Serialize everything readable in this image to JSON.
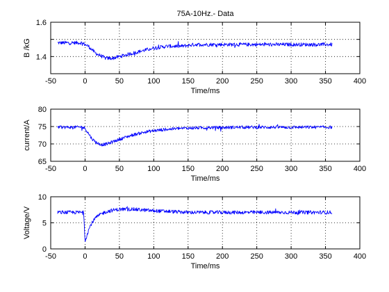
{
  "chart_data": [
    {
      "type": "line",
      "title": "75A-10Hz.- Data",
      "xlabel": "Time/ms",
      "ylabel": "B /kG",
      "xlim": [
        -50,
        400
      ],
      "ylim": [
        1.3,
        1.6
      ],
      "xticks": [
        -50,
        0,
        50,
        100,
        150,
        200,
        250,
        300,
        350,
        400
      ],
      "yticks": [
        1.4,
        1.6
      ],
      "grid": true,
      "color": "#0000ff",
      "series": [
        {
          "x": [
            -40,
            -30,
            -20,
            -10,
            -5,
            0,
            5,
            10,
            15,
            20,
            25,
            30,
            35,
            40,
            50,
            60,
            70,
            80,
            90,
            100,
            120,
            140,
            160,
            180,
            200,
            220,
            240,
            260,
            280,
            300,
            320,
            340,
            360
          ],
          "y": [
            1.48,
            1.48,
            1.48,
            1.48,
            1.48,
            1.47,
            1.46,
            1.44,
            1.42,
            1.41,
            1.4,
            1.39,
            1.39,
            1.39,
            1.4,
            1.41,
            1.42,
            1.43,
            1.44,
            1.45,
            1.46,
            1.46,
            1.47,
            1.47,
            1.47,
            1.47,
            1.47,
            1.47,
            1.47,
            1.47,
            1.47,
            1.47,
            1.47
          ]
        }
      ]
    },
    {
      "type": "line",
      "title": "",
      "xlabel": "Time/ms",
      "ylabel": "current/A",
      "xlim": [
        -50,
        400
      ],
      "ylim": [
        65,
        80
      ],
      "xticks": [
        -50,
        0,
        50,
        100,
        150,
        200,
        250,
        300,
        350,
        400
      ],
      "yticks": [
        65,
        70,
        75,
        80
      ],
      "grid": true,
      "color": "#0000ff",
      "series": [
        {
          "x": [
            -40,
            -30,
            -20,
            -10,
            -5,
            0,
            5,
            10,
            15,
            20,
            25,
            30,
            35,
            40,
            50,
            60,
            70,
            80,
            90,
            100,
            120,
            140,
            160,
            180,
            200,
            220,
            240,
            260,
            280,
            300,
            320,
            340,
            360
          ],
          "y": [
            74.8,
            74.8,
            74.8,
            74.8,
            74.9,
            74.5,
            73.0,
            71.5,
            70.6,
            70.0,
            69.8,
            69.9,
            70.2,
            70.6,
            71.3,
            72.0,
            72.6,
            73.1,
            73.5,
            73.8,
            74.2,
            74.5,
            74.6,
            74.7,
            74.7,
            74.8,
            74.8,
            74.8,
            74.8,
            74.8,
            74.8,
            74.8,
            74.8
          ]
        }
      ]
    },
    {
      "type": "line",
      "title": "",
      "xlabel": "Time/ms",
      "ylabel": "Voltage/V",
      "xlim": [
        -50,
        400
      ],
      "ylim": [
        0,
        10
      ],
      "xticks": [
        -50,
        0,
        50,
        100,
        150,
        200,
        250,
        300,
        350,
        400
      ],
      "yticks": [
        0,
        5,
        10
      ],
      "grid": true,
      "color": "#0000ff",
      "series": [
        {
          "x": [
            -40,
            -30,
            -20,
            -10,
            -2,
            0,
            1,
            3,
            5,
            8,
            10,
            15,
            20,
            25,
            30,
            40,
            50,
            60,
            70,
            80,
            90,
            100,
            120,
            150,
            200,
            250,
            300,
            360
          ],
          "y": [
            7.0,
            7.0,
            7.0,
            7.0,
            7.0,
            1.3,
            1.8,
            2.8,
            3.6,
            4.5,
            5.0,
            5.9,
            6.4,
            6.8,
            7.1,
            7.4,
            7.6,
            7.6,
            7.6,
            7.5,
            7.4,
            7.3,
            7.2,
            7.0,
            7.0,
            7.0,
            7.0,
            7.0
          ]
        }
      ]
    }
  ]
}
